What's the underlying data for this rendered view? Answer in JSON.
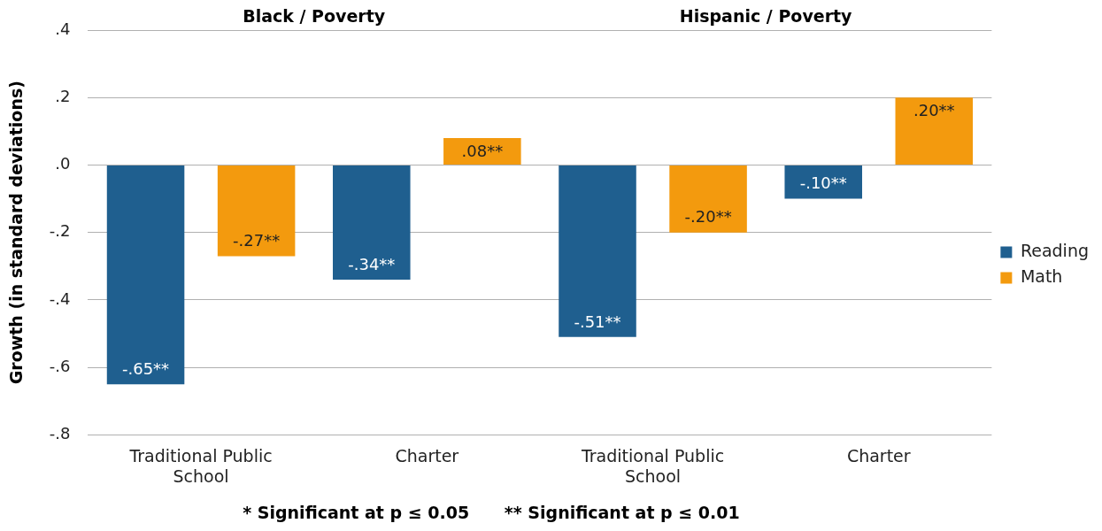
{
  "chart_data": {
    "type": "bar",
    "ylabel": "Growth (in standard deviations)",
    "categories": [
      "Traditional Public School",
      "Charter",
      "Traditional Public School",
      "Charter"
    ],
    "series": [
      {
        "name": "Reading",
        "color": "#1f5f8f",
        "values": [
          -0.65,
          -0.34,
          -0.51,
          -0.1
        ],
        "value_labels": [
          "-.65**",
          "-.34**",
          "-.51**",
          "-.10**"
        ]
      },
      {
        "name": "Math",
        "color": "#f39a0e",
        "values": [
          -0.27,
          0.08,
          -0.2,
          0.2
        ],
        "value_labels": [
          "-.27**",
          ".08**",
          "-.20**",
          ".20**"
        ]
      }
    ],
    "ylim": [
      -0.8,
      0.4
    ],
    "yticks": [
      {
        "value": -0.8,
        "label": "-.8"
      },
      {
        "value": -0.6,
        "label": "-.6"
      },
      {
        "value": -0.4,
        "label": "-.4"
      },
      {
        "value": -0.2,
        "label": "-.2"
      },
      {
        "value": 0,
        "label": ".0"
      },
      {
        "value": 0.2,
        "label": ".2"
      },
      {
        "value": 0.4,
        "label": ".4"
      }
    ],
    "grid": "y",
    "legend": "right",
    "annotations": [
      "Black / Poverty",
      "Hispanic / Poverty",
      "* Significant at p ≤ 0.05      ** Significant at p ≤ 0.01"
    ]
  }
}
